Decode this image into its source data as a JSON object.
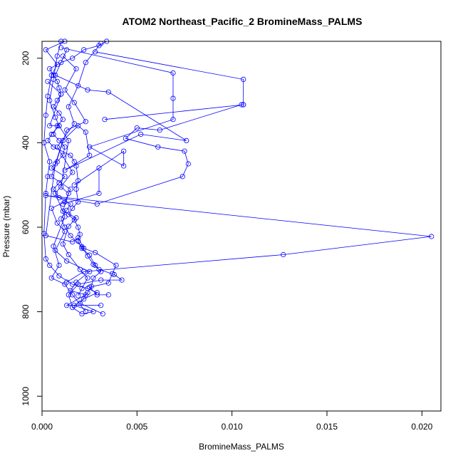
{
  "chart_data": {
    "type": "line",
    "title": "ATOM2 Northeast_Pacific_2 BromineMass_PALMS",
    "xlabel": "BromineMass_PALMS",
    "ylabel": "Pressure (mbar)",
    "xlim": [
      0,
      0.021
    ],
    "ylim": [
      1035,
      160
    ],
    "y_inverted": true,
    "grid": false,
    "legend": "none",
    "x_ticks": [
      {
        "value": 0.0,
        "label": "0.000"
      },
      {
        "value": 0.005,
        "label": "0.005"
      },
      {
        "value": 0.01,
        "label": "0.010"
      },
      {
        "value": 0.015,
        "label": "0.015"
      },
      {
        "value": 0.02,
        "label": "0.020"
      }
    ],
    "y_ticks": [
      {
        "value": 200,
        "label": "200"
      },
      {
        "value": 400,
        "label": "400"
      },
      {
        "value": 600,
        "label": "600"
      },
      {
        "value": 800,
        "label": "800"
      },
      {
        "value": 1000,
        "label": "1000"
      }
    ],
    "series": [
      {
        "color": "#0000ff",
        "marker": "open-circle",
        "points": [
          [
            0.0012,
            160
          ],
          [
            0.0002,
            180
          ],
          [
            0.0008,
            215
          ],
          [
            0.0005,
            240
          ],
          [
            0.0003,
            290
          ],
          [
            0.0002,
            335
          ],
          [
            0.0001,
            400
          ],
          [
            0.0004,
            445
          ],
          [
            0.0003,
            480
          ],
          [
            0.0002,
            520
          ],
          [
            0.0001,
            615
          ],
          [
            0.0002,
            675
          ],
          [
            0.0004,
            690
          ],
          [
            0.0009,
            715
          ],
          [
            0.0016,
            735
          ],
          [
            0.0024,
            745
          ],
          [
            0.0029,
            755
          ],
          [
            0.0022,
            770
          ],
          [
            0.0017,
            785
          ],
          [
            0.0027,
            800
          ],
          [
            0.0021,
            805
          ],
          [
            0.0016,
            790
          ],
          [
            0.0014,
            760
          ],
          [
            0.0019,
            735
          ],
          [
            0.0031,
            725
          ],
          [
            0.0042,
            725
          ],
          [
            0.0038,
            712
          ],
          [
            0.003,
            700
          ],
          [
            0.0027,
            688
          ],
          [
            0.0024,
            668
          ],
          [
            0.0021,
            646
          ],
          [
            0.0015,
            620
          ],
          [
            0.0012,
            600
          ],
          [
            0.001,
            580
          ],
          [
            0.0013,
            560
          ],
          [
            0.0015,
            545
          ],
          [
            0.0009,
            530
          ],
          [
            0.0006,
            510
          ],
          [
            0.0009,
            495
          ],
          [
            0.0012,
            480
          ],
          [
            0.0005,
            460
          ],
          [
            0.0008,
            445
          ],
          [
            0.0011,
            430
          ],
          [
            0.0012,
            410
          ],
          [
            0.0009,
            395
          ],
          [
            0.0006,
            380
          ],
          [
            0.0008,
            360
          ],
          [
            0.0011,
            345
          ],
          [
            0.0009,
            330
          ],
          [
            0.0006,
            315
          ],
          [
            0.0008,
            300
          ],
          [
            0.001,
            285
          ],
          [
            0.0009,
            270
          ],
          [
            0.0008,
            255
          ],
          [
            0.0006,
            240
          ],
          [
            0.0004,
            225
          ],
          [
            0.001,
            210
          ],
          [
            0.0016,
            200
          ],
          [
            0.0022,
            180
          ],
          [
            0.003,
            170
          ],
          [
            0.0034,
            160
          ]
        ]
      },
      {
        "color": "#0000ff",
        "marker": "open-circle",
        "points": [
          [
            0.001,
            160
          ],
          [
            0.0008,
            195
          ],
          [
            0.0006,
            250
          ],
          [
            0.0004,
            300
          ],
          [
            0.0007,
            340
          ],
          [
            0.0009,
            360
          ],
          [
            0.0005,
            380
          ],
          [
            0.0003,
            395
          ],
          [
            0.0006,
            410
          ],
          [
            0.0015,
            430
          ],
          [
            0.0017,
            445
          ],
          [
            0.0018,
            455
          ],
          [
            0.0019,
            490
          ],
          [
            0.0018,
            510
          ],
          [
            0.0019,
            540
          ],
          [
            0.0016,
            555
          ],
          [
            0.0014,
            570
          ],
          [
            0.0017,
            583
          ],
          [
            0.0019,
            600
          ],
          [
            0.002,
            617
          ],
          [
            0.0019,
            633
          ],
          [
            0.0021,
            650
          ],
          [
            0.0025,
            666
          ],
          [
            0.0028,
            690
          ],
          [
            0.0031,
            705
          ],
          [
            0.0027,
            720
          ],
          [
            0.0026,
            740
          ],
          [
            0.0024,
            755
          ],
          [
            0.002,
            780
          ],
          [
            0.0032,
            805
          ]
        ]
      },
      {
        "color": "#0000ff",
        "marker": "open-circle",
        "points": [
          [
            0.0028,
            185
          ],
          [
            0.0106,
            250
          ],
          [
            0.0106,
            310
          ],
          [
            0.0033,
            345
          ],
          [
            0.0106,
            310
          ],
          [
            0.0105,
            310
          ],
          [
            0.0062,
            370
          ],
          [
            0.005,
            365
          ],
          [
            0.0044,
            390
          ],
          [
            0.0061,
            410
          ],
          [
            0.0075,
            420
          ],
          [
            0.0077,
            450
          ],
          [
            0.0074,
            480
          ],
          [
            0.0029,
            545
          ],
          [
            0.0002,
            525
          ],
          [
            0.0205,
            622
          ],
          [
            0.0127,
            665
          ],
          [
            0.0022,
            705
          ],
          [
            0.0013,
            730
          ]
        ]
      },
      {
        "color": "#0000ff",
        "marker": "open-circle",
        "points": [
          [
            0.001,
            175
          ],
          [
            0.0069,
            235
          ],
          [
            0.0069,
            295
          ],
          [
            0.0069,
            345
          ],
          [
            0.0025,
            410
          ],
          [
            0.0043,
            455
          ],
          [
            0.0043,
            420
          ],
          [
            0.0017,
            500
          ],
          [
            0.003,
            460
          ],
          [
            0.003,
            520
          ],
          [
            0.0011,
            545
          ]
        ]
      },
      {
        "color": "#0000ff",
        "marker": "open-circle",
        "points": [
          [
            0.0013,
            180
          ],
          [
            0.0007,
            240
          ],
          [
            0.0024,
            275
          ],
          [
            0.0035,
            280
          ],
          [
            0.0076,
            395
          ],
          [
            0.0052,
            380
          ],
          [
            0.0012,
            465
          ],
          [
            0.0025,
            430
          ],
          [
            0.0023,
            375
          ],
          [
            0.0019,
            360
          ],
          [
            0.0011,
            395
          ],
          [
            0.0007,
            450
          ],
          [
            0.0002,
            620
          ],
          [
            0.0016,
            635
          ],
          [
            0.0019,
            625
          ],
          [
            0.0022,
            650
          ],
          [
            0.0028,
            660
          ],
          [
            0.0039,
            690
          ],
          [
            0.0037,
            710
          ],
          [
            0.0035,
            732
          ],
          [
            0.0025,
            742
          ],
          [
            0.0029,
            760
          ],
          [
            0.0035,
            760
          ]
        ]
      },
      {
        "color": "#0000ff",
        "marker": "open-circle",
        "points": [
          [
            0.0011,
            195
          ],
          [
            0.0018,
            225
          ],
          [
            0.0012,
            275
          ],
          [
            0.0017,
            305
          ],
          [
            0.0023,
            350
          ],
          [
            0.0013,
            370
          ],
          [
            0.0005,
            480
          ],
          [
            0.0015,
            510
          ],
          [
            0.0012,
            540
          ],
          [
            0.0005,
            555
          ],
          [
            0.0008,
            590
          ],
          [
            0.0012,
            610
          ],
          [
            0.0007,
            655
          ],
          [
            0.0013,
            680
          ],
          [
            0.0025,
            705
          ],
          [
            0.0018,
            730
          ],
          [
            0.0015,
            750
          ],
          [
            0.0023,
            760
          ],
          [
            0.0013,
            785
          ],
          [
            0.0031,
            785
          ]
        ]
      },
      {
        "color": "#0000ff",
        "marker": "open-circle",
        "points": [
          [
            0.0031,
            165
          ],
          [
            0.0023,
            210
          ],
          [
            0.0019,
            265
          ],
          [
            0.0014,
            315
          ],
          [
            0.0017,
            355
          ],
          [
            0.0008,
            410
          ],
          [
            0.0016,
            470
          ],
          [
            0.0007,
            520
          ],
          [
            0.0012,
            575
          ],
          [
            0.0006,
            645
          ],
          [
            0.0009,
            690
          ],
          [
            0.0005,
            720
          ],
          [
            0.0012,
            735
          ],
          [
            0.0016,
            760
          ],
          [
            0.0023,
            800
          ]
        ]
      },
      {
        "color": "#0000ff",
        "marker": "open-circle",
        "points": [
          [
            0.0003,
            255
          ],
          [
            0.001,
            285
          ],
          [
            0.0004,
            360
          ],
          [
            0.0009,
            360
          ],
          [
            0.0014,
            395
          ],
          [
            0.001,
            505
          ],
          [
            0.0014,
            520
          ],
          [
            0.0011,
            562
          ],
          [
            0.0018,
            578
          ],
          [
            0.0014,
            598
          ],
          [
            0.0011,
            640
          ],
          [
            0.0014,
            665
          ],
          [
            0.002,
            700
          ],
          [
            0.0024,
            720
          ],
          [
            0.0021,
            745
          ],
          [
            0.0019,
            762
          ]
        ]
      }
    ]
  }
}
